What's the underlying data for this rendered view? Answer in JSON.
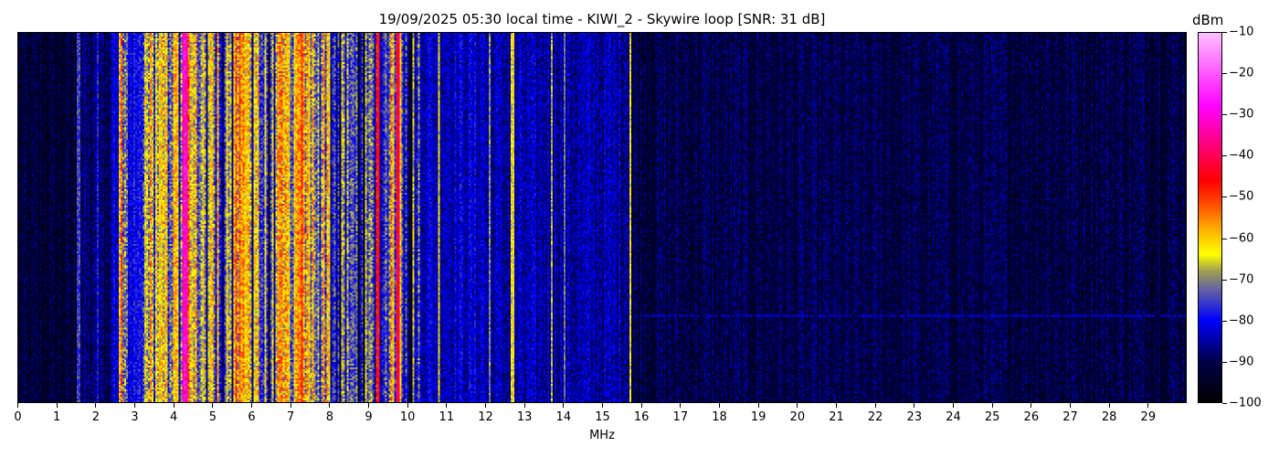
{
  "chart_data": {
    "type": "heatmap",
    "title": "19/09/2025 05:30 local time - KIWI_2 - Skywire loop [SNR: 31 dB]",
    "xlabel": "MHz",
    "ylabel": "",
    "xlim": [
      0,
      30
    ],
    "x_ticks": [
      0,
      1,
      2,
      3,
      4,
      5,
      6,
      7,
      8,
      9,
      10,
      11,
      12,
      13,
      14,
      15,
      16,
      17,
      18,
      19,
      20,
      21,
      22,
      23,
      24,
      25,
      26,
      27,
      28,
      29
    ],
    "colorbar": {
      "label": "dBm",
      "range": [
        -100,
        -10
      ],
      "ticks": [
        -10,
        -20,
        -30,
        -40,
        -50,
        -60,
        -70,
        -80,
        -90,
        -100
      ],
      "colors": [
        [
          "-100",
          "#000000"
        ],
        [
          "-90",
          "#00004a"
        ],
        [
          "-80",
          "#0000ff"
        ],
        [
          "-72",
          "#6a6a9a"
        ],
        [
          "-68",
          "#a0a050"
        ],
        [
          "-64",
          "#ffff00"
        ],
        [
          "-58",
          "#ffb000"
        ],
        [
          "-52",
          "#ff5000"
        ],
        [
          "-46",
          "#ff0000"
        ],
        [
          "-38",
          "#ff0070"
        ],
        [
          "-28",
          "#ff00ff"
        ],
        [
          "-10",
          "#ffc0ff"
        ]
      ]
    },
    "band_mean_dbm": [
      [
        0,
        1.5,
        -93
      ],
      [
        1.5,
        2.4,
        -89
      ],
      [
        2.4,
        2.6,
        -82
      ],
      [
        2.6,
        2.8,
        -62
      ],
      [
        2.8,
        3.2,
        -80
      ],
      [
        3.2,
        4.2,
        -66
      ],
      [
        4.2,
        4.4,
        -40
      ],
      [
        4.4,
        5.6,
        -67
      ],
      [
        5.6,
        6.2,
        -62
      ],
      [
        6.2,
        6.6,
        -74
      ],
      [
        6.6,
        7.4,
        -65
      ],
      [
        7.4,
        8.0,
        -65
      ],
      [
        8.0,
        9.2,
        -77
      ],
      [
        9.2,
        9.3,
        -44
      ],
      [
        9.3,
        9.9,
        -70
      ],
      [
        9.9,
        10.3,
        -76
      ],
      [
        10.3,
        12.0,
        -83
      ],
      [
        12.0,
        15.7,
        -85
      ],
      [
        15.7,
        30,
        -91
      ]
    ],
    "carriers_mhz_dbm": [
      [
        1.55,
        -75
      ],
      [
        2.05,
        -78
      ],
      [
        4.3,
        -38
      ],
      [
        7.3,
        -48
      ],
      [
        9.25,
        -44
      ],
      [
        9.6,
        -55
      ],
      [
        9.75,
        -42
      ],
      [
        10.15,
        -66
      ],
      [
        10.8,
        -65
      ],
      [
        12.1,
        -70
      ],
      [
        12.7,
        -64
      ],
      [
        13.7,
        -68
      ],
      [
        14.05,
        -72
      ],
      [
        15.72,
        -64
      ]
    ]
  }
}
